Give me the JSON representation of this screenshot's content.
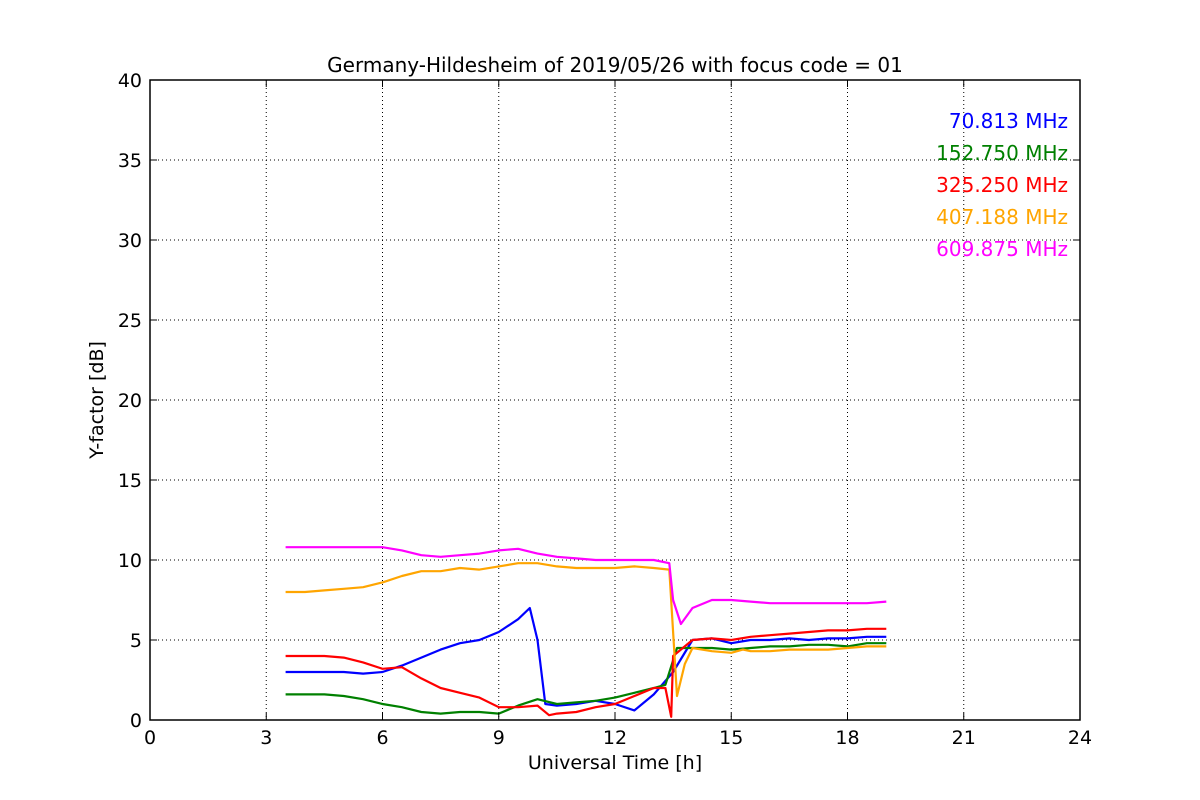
{
  "chart_data": {
    "type": "line",
    "title": "Germany-Hildesheim of 2019/05/26 with focus code = 01",
    "xlabel": "Universal Time [h]",
    "ylabel": "Y-factor [dB]",
    "xlim": [
      0,
      24
    ],
    "ylim": [
      0,
      40
    ],
    "xticks": [
      0,
      3,
      6,
      9,
      12,
      15,
      18,
      21,
      24
    ],
    "yticks": [
      0,
      5,
      10,
      15,
      20,
      25,
      30,
      35,
      40
    ],
    "grid": true,
    "legend_placement": "top-right",
    "series": [
      {
        "name": "70.813 MHz",
        "color": "#0000ff",
        "x": [
          3.5,
          4.0,
          4.5,
          5.0,
          5.5,
          6.0,
          6.5,
          7.0,
          7.5,
          8.0,
          8.5,
          9.0,
          9.5,
          9.8,
          10.0,
          10.2,
          10.5,
          11.0,
          11.5,
          12.0,
          12.5,
          13.0,
          13.5,
          14.0,
          14.5,
          15.0,
          15.5,
          16.0,
          16.5,
          17.0,
          17.5,
          18.0,
          18.5,
          19.0
        ],
        "y": [
          3.0,
          3.0,
          3.0,
          3.0,
          2.9,
          3.0,
          3.4,
          3.9,
          4.4,
          4.8,
          5.0,
          5.5,
          6.3,
          7.0,
          5.0,
          1.0,
          0.9,
          1.0,
          1.2,
          1.0,
          0.6,
          1.6,
          3.0,
          5.0,
          5.1,
          4.8,
          5.0,
          5.0,
          5.1,
          5.0,
          5.1,
          5.1,
          5.2,
          5.2
        ]
      },
      {
        "name": "152.750 MHz",
        "color": "#008000",
        "x": [
          3.5,
          4.0,
          4.5,
          5.0,
          5.5,
          6.0,
          6.5,
          7.0,
          7.5,
          8.0,
          8.5,
          9.0,
          9.5,
          10.0,
          10.5,
          11.0,
          11.5,
          12.0,
          12.5,
          13.0,
          13.3,
          13.6,
          14.0,
          14.5,
          15.0,
          15.5,
          16.0,
          16.5,
          17.0,
          17.5,
          18.0,
          18.5,
          19.0
        ],
        "y": [
          1.6,
          1.6,
          1.6,
          1.5,
          1.3,
          1.0,
          0.8,
          0.5,
          0.4,
          0.5,
          0.5,
          0.4,
          0.9,
          1.3,
          1.0,
          1.1,
          1.2,
          1.4,
          1.7,
          2.0,
          2.2,
          4.5,
          4.5,
          4.5,
          4.4,
          4.5,
          4.6,
          4.6,
          4.7,
          4.7,
          4.6,
          4.8,
          4.8
        ]
      },
      {
        "name": "325.250 MHz",
        "color": "#ff0000",
        "x": [
          3.5,
          4.0,
          4.5,
          5.0,
          5.5,
          6.0,
          6.5,
          7.0,
          7.5,
          8.0,
          8.5,
          9.0,
          9.5,
          10.0,
          10.3,
          10.5,
          11.0,
          11.5,
          12.0,
          12.5,
          13.0,
          13.3,
          13.45,
          13.5,
          14.0,
          14.5,
          15.0,
          15.5,
          16.0,
          16.5,
          17.0,
          17.5,
          18.0,
          18.5,
          19.0
        ],
        "y": [
          4.0,
          4.0,
          4.0,
          3.9,
          3.6,
          3.2,
          3.3,
          2.6,
          2.0,
          1.7,
          1.4,
          0.8,
          0.8,
          0.9,
          0.3,
          0.4,
          0.5,
          0.8,
          1.0,
          1.5,
          2.0,
          2.0,
          0.2,
          4.0,
          5.0,
          5.1,
          5.0,
          5.2,
          5.3,
          5.4,
          5.5,
          5.6,
          5.6,
          5.7,
          5.7
        ]
      },
      {
        "name": "407.188 MHz",
        "color": "#ffa500",
        "x": [
          3.5,
          4.0,
          4.5,
          5.0,
          5.5,
          6.0,
          6.5,
          7.0,
          7.5,
          8.0,
          8.5,
          9.0,
          9.5,
          10.0,
          10.5,
          11.0,
          11.5,
          12.0,
          12.5,
          13.0,
          13.4,
          13.6,
          13.8,
          14.0,
          14.5,
          15.0,
          15.3,
          15.5,
          16.0,
          16.5,
          17.0,
          17.5,
          18.0,
          18.5,
          19.0
        ],
        "y": [
          8.0,
          8.0,
          8.1,
          8.2,
          8.3,
          8.6,
          9.0,
          9.3,
          9.3,
          9.5,
          9.4,
          9.6,
          9.8,
          9.8,
          9.6,
          9.5,
          9.5,
          9.5,
          9.6,
          9.5,
          9.4,
          1.5,
          3.5,
          4.5,
          4.3,
          4.2,
          4.4,
          4.3,
          4.3,
          4.4,
          4.4,
          4.4,
          4.5,
          4.6,
          4.6
        ]
      },
      {
        "name": "609.875 MHz",
        "color": "#ff00ff",
        "x": [
          3.5,
          4.0,
          4.5,
          5.0,
          5.5,
          6.0,
          6.5,
          7.0,
          7.5,
          8.0,
          8.5,
          9.0,
          9.5,
          10.0,
          10.5,
          11.0,
          11.5,
          12.0,
          12.5,
          13.0,
          13.4,
          13.5,
          13.7,
          14.0,
          14.5,
          15.0,
          15.5,
          16.0,
          16.5,
          17.0,
          17.5,
          18.0,
          18.5,
          19.0
        ],
        "y": [
          10.8,
          10.8,
          10.8,
          10.8,
          10.8,
          10.8,
          10.6,
          10.3,
          10.2,
          10.3,
          10.4,
          10.6,
          10.7,
          10.4,
          10.2,
          10.1,
          10.0,
          10.0,
          10.0,
          10.0,
          9.8,
          7.5,
          6.0,
          7.0,
          7.5,
          7.5,
          7.4,
          7.3,
          7.3,
          7.3,
          7.3,
          7.3,
          7.3,
          7.4
        ]
      }
    ]
  }
}
